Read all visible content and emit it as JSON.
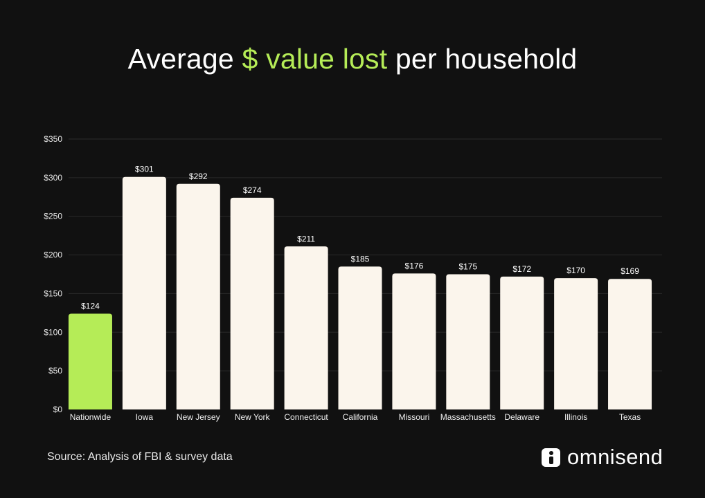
{
  "title": {
    "prefix": "Average ",
    "highlight": "$ value lost",
    "suffix": " per household"
  },
  "colors": {
    "background": "#111111",
    "accent": "#b5ec57",
    "bar": "#fbf5ec",
    "grid": "#2a2a2a",
    "text": "#ffffff"
  },
  "chart_data": {
    "type": "bar",
    "title": "Average $ value lost per household",
    "xlabel": "",
    "ylabel": "",
    "ylim": [
      0,
      350
    ],
    "ytick_values": [
      0,
      50,
      100,
      150,
      200,
      250,
      300,
      350
    ],
    "ytick_labels": [
      "$0",
      "$50",
      "$100",
      "$150",
      "$200",
      "$250",
      "$300",
      "$350"
    ],
    "grid": true,
    "categories": [
      "Nationwide",
      "Iowa",
      "New Jersey",
      "New York",
      "Connecticut",
      "California",
      "Missouri",
      "Massachusetts",
      "Delaware",
      "Illinois",
      "Texas"
    ],
    "values": [
      124,
      301,
      292,
      274,
      211,
      185,
      176,
      175,
      172,
      170,
      169
    ],
    "data_labels": [
      "$124",
      "$301",
      "$292",
      "$274",
      "$211",
      "$185",
      "$176",
      "$175",
      "$172",
      "$170",
      "$169"
    ],
    "highlight_category": "Nationwide"
  },
  "footer": {
    "source": "Source: Analysis of FBI & survey data",
    "brand": "omnisend",
    "brand_icon": "omnisend-logo-icon"
  }
}
